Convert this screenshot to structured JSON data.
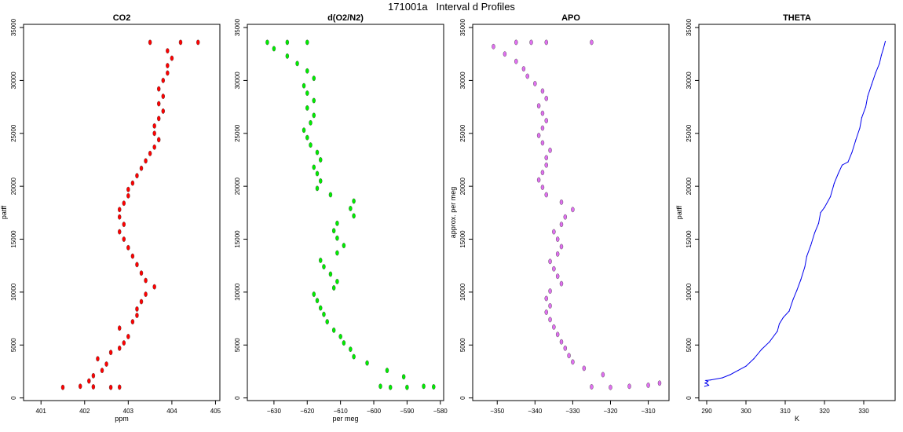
{
  "page": {
    "title": "171001a   Interval d Profiles"
  },
  "chart_data": [
    {
      "type": "scatter",
      "title": "CO2",
      "xlabel": "ppm",
      "ylabel": "patff",
      "xlim": [
        400.6,
        405.1
      ],
      "ylim": [
        -250,
        35300
      ],
      "xticks": [
        401,
        402,
        403,
        404,
        405
      ],
      "yticks": [
        0,
        5000,
        10000,
        15000,
        20000,
        25000,
        30000,
        35000
      ],
      "color": "#ff0000",
      "points": [
        [
          401.5,
          1000
        ],
        [
          401.9,
          1100
        ],
        [
          402.2,
          1050
        ],
        [
          402.6,
          1000
        ],
        [
          402.8,
          1020
        ],
        [
          402.1,
          1600
        ],
        [
          402.2,
          2100
        ],
        [
          402.4,
          2600
        ],
        [
          402.5,
          3200
        ],
        [
          402.3,
          3700
        ],
        [
          402.6,
          4300
        ],
        [
          402.8,
          4700
        ],
        [
          402.9,
          5200
        ],
        [
          403.0,
          5800
        ],
        [
          402.8,
          6600
        ],
        [
          403.1,
          7200
        ],
        [
          403.2,
          7800
        ],
        [
          403.2,
          8400
        ],
        [
          403.3,
          9100
        ],
        [
          403.4,
          9800
        ],
        [
          403.6,
          10500
        ],
        [
          403.4,
          11100
        ],
        [
          403.3,
          11800
        ],
        [
          403.2,
          12600
        ],
        [
          403.1,
          13400
        ],
        [
          403.0,
          14200
        ],
        [
          402.9,
          15000
        ],
        [
          402.8,
          15700
        ],
        [
          402.9,
          16400
        ],
        [
          402.8,
          17100
        ],
        [
          402.8,
          17800
        ],
        [
          402.9,
          18400
        ],
        [
          403.0,
          19100
        ],
        [
          403.0,
          19700
        ],
        [
          403.1,
          20300
        ],
        [
          403.2,
          21000
        ],
        [
          403.3,
          21700
        ],
        [
          403.4,
          22400
        ],
        [
          403.5,
          23100
        ],
        [
          403.6,
          23700
        ],
        [
          403.7,
          24400
        ],
        [
          403.6,
          25000
        ],
        [
          403.6,
          25700
        ],
        [
          403.7,
          26400
        ],
        [
          403.8,
          27100
        ],
        [
          403.7,
          27800
        ],
        [
          403.8,
          28500
        ],
        [
          403.7,
          29200
        ],
        [
          403.8,
          30000
        ],
        [
          403.9,
          30700
        ],
        [
          403.9,
          31400
        ],
        [
          404.0,
          32100
        ],
        [
          403.9,
          32800
        ],
        [
          403.5,
          33600
        ],
        [
          404.2,
          33600
        ],
        [
          404.6,
          33600
        ]
      ]
    },
    {
      "type": "scatter",
      "title": "d(O2/N2)",
      "xlabel": "per meg",
      "ylabel": "",
      "xlim": [
        -638,
        -579
      ],
      "ylim": [
        -250,
        35300
      ],
      "xticks": [
        -630,
        -620,
        -610,
        -600,
        -590,
        -580
      ],
      "yticks": [
        0,
        5000,
        10000,
        15000,
        20000,
        25000,
        30000,
        35000
      ],
      "color": "#00ee00",
      "points": [
        [
          -590,
          1000
        ],
        [
          -585,
          1100
        ],
        [
          -582,
          1050
        ],
        [
          -595,
          1000
        ],
        [
          -598,
          1100
        ],
        [
          -591,
          2000
        ],
        [
          -596,
          2600
        ],
        [
          -602,
          3300
        ],
        [
          -606,
          3900
        ],
        [
          -607,
          4600
        ],
        [
          -609,
          5200
        ],
        [
          -610,
          5800
        ],
        [
          -612,
          6400
        ],
        [
          -614,
          7200
        ],
        [
          -615,
          7900
        ],
        [
          -616,
          8500
        ],
        [
          -617,
          9200
        ],
        [
          -618,
          9800
        ],
        [
          -612,
          10400
        ],
        [
          -611,
          11000
        ],
        [
          -613,
          11700
        ],
        [
          -615,
          12400
        ],
        [
          -616,
          13000
        ],
        [
          -611,
          13700
        ],
        [
          -609,
          14400
        ],
        [
          -611,
          15100
        ],
        [
          -612,
          15800
        ],
        [
          -611,
          16500
        ],
        [
          -606,
          17200
        ],
        [
          -607,
          17900
        ],
        [
          -606,
          18600
        ],
        [
          -613,
          19200
        ],
        [
          -617,
          19800
        ],
        [
          -616,
          20500
        ],
        [
          -617,
          21200
        ],
        [
          -618,
          21800
        ],
        [
          -616,
          22500
        ],
        [
          -617,
          23200
        ],
        [
          -619,
          23900
        ],
        [
          -620,
          24600
        ],
        [
          -621,
          25300
        ],
        [
          -619,
          26000
        ],
        [
          -618,
          26700
        ],
        [
          -620,
          27400
        ],
        [
          -618,
          28100
        ],
        [
          -620,
          28800
        ],
        [
          -621,
          29500
        ],
        [
          -618,
          30200
        ],
        [
          -620,
          30900
        ],
        [
          -623,
          31600
        ],
        [
          -626,
          32300
        ],
        [
          -630,
          33000
        ],
        [
          -626,
          33600
        ],
        [
          -632,
          33600
        ],
        [
          -620,
          33600
        ]
      ]
    },
    {
      "type": "scatter",
      "title": "APO",
      "xlabel": "",
      "ylabel": "approx. per meg",
      "xlim": [
        -356.5,
        -304.5
      ],
      "ylim": [
        -250,
        35300
      ],
      "xticks": [
        -350,
        -340,
        -330,
        -320,
        -310
      ],
      "yticks": [
        0,
        5000,
        10000,
        15000,
        20000,
        25000,
        30000,
        35000
      ],
      "color": "#e070f0",
      "points": [
        [
          -315,
          1100
        ],
        [
          -310,
          1200
        ],
        [
          -307,
          1400
        ],
        [
          -320,
          1000
        ],
        [
          -325,
          1050
        ],
        [
          -322,
          2200
        ],
        [
          -327,
          2800
        ],
        [
          -330,
          3400
        ],
        [
          -331,
          4000
        ],
        [
          -332,
          4700
        ],
        [
          -333,
          5300
        ],
        [
          -334,
          6000
        ],
        [
          -335,
          6700
        ],
        [
          -336,
          7400
        ],
        [
          -337,
          8100
        ],
        [
          -336,
          8700
        ],
        [
          -337,
          9400
        ],
        [
          -336,
          10100
        ],
        [
          -333,
          10800
        ],
        [
          -334,
          11500
        ],
        [
          -335,
          12200
        ],
        [
          -336,
          12900
        ],
        [
          -334,
          13600
        ],
        [
          -333,
          14300
        ],
        [
          -334,
          15000
        ],
        [
          -335,
          15700
        ],
        [
          -333,
          16400
        ],
        [
          -332,
          17100
        ],
        [
          -330,
          17800
        ],
        [
          -333,
          18500
        ],
        [
          -337,
          19200
        ],
        [
          -338,
          19900
        ],
        [
          -339,
          20600
        ],
        [
          -338,
          21300
        ],
        [
          -337,
          22000
        ],
        [
          -337,
          22700
        ],
        [
          -336,
          23400
        ],
        [
          -338,
          24100
        ],
        [
          -339,
          24800
        ],
        [
          -338,
          25500
        ],
        [
          -337,
          26200
        ],
        [
          -338,
          26900
        ],
        [
          -339,
          27600
        ],
        [
          -337,
          28300
        ],
        [
          -338,
          29000
        ],
        [
          -340,
          29700
        ],
        [
          -342,
          30400
        ],
        [
          -343,
          31100
        ],
        [
          -345,
          31800
        ],
        [
          -348,
          32500
        ],
        [
          -351,
          33200
        ],
        [
          -345,
          33600
        ],
        [
          -341,
          33600
        ],
        [
          -337,
          33600
        ],
        [
          -325,
          33600
        ]
      ]
    },
    {
      "type": "line",
      "title": "THETA",
      "xlabel": "K",
      "ylabel": "patff",
      "xlim": [
        288,
        338
      ],
      "ylim": [
        -250,
        35300
      ],
      "xticks": [
        290,
        300,
        310,
        320,
        330
      ],
      "yticks": [
        0,
        5000,
        10000,
        15000,
        20000,
        25000,
        30000,
        35000
      ],
      "color": "#0000ee",
      "points": [
        [
          289.5,
          1100
        ],
        [
          290.5,
          1200
        ],
        [
          290.2,
          1300
        ],
        [
          289.6,
          1400
        ],
        [
          290.3,
          1550
        ],
        [
          289.8,
          1650
        ],
        [
          291,
          1700
        ],
        [
          294,
          1900
        ],
        [
          296,
          2200
        ],
        [
          298,
          2600
        ],
        [
          300,
          3000
        ],
        [
          302,
          3700
        ],
        [
          304,
          4600
        ],
        [
          306,
          5300
        ],
        [
          308,
          6300
        ],
        [
          308.5,
          7000
        ],
        [
          309.5,
          7600
        ],
        [
          311,
          8200
        ],
        [
          312,
          9300
        ],
        [
          313,
          10200
        ],
        [
          314,
          11200
        ],
        [
          315,
          12400
        ],
        [
          315.5,
          13400
        ],
        [
          316.5,
          14400
        ],
        [
          317.5,
          15600
        ],
        [
          318.5,
          16500
        ],
        [
          319,
          17500
        ],
        [
          320,
          18000
        ],
        [
          321.5,
          19000
        ],
        [
          322.5,
          20300
        ],
        [
          323.5,
          21200
        ],
        [
          324.5,
          22000
        ],
        [
          326,
          22300
        ],
        [
          327,
          23200
        ],
        [
          328,
          24400
        ],
        [
          329,
          25500
        ],
        [
          329.5,
          26500
        ],
        [
          330.5,
          27500
        ],
        [
          331,
          28500
        ],
        [
          332,
          29600
        ],
        [
          333,
          30700
        ],
        [
          334,
          31600
        ],
        [
          334.5,
          32400
        ],
        [
          335,
          33000
        ],
        [
          335.5,
          33700
        ]
      ]
    }
  ]
}
